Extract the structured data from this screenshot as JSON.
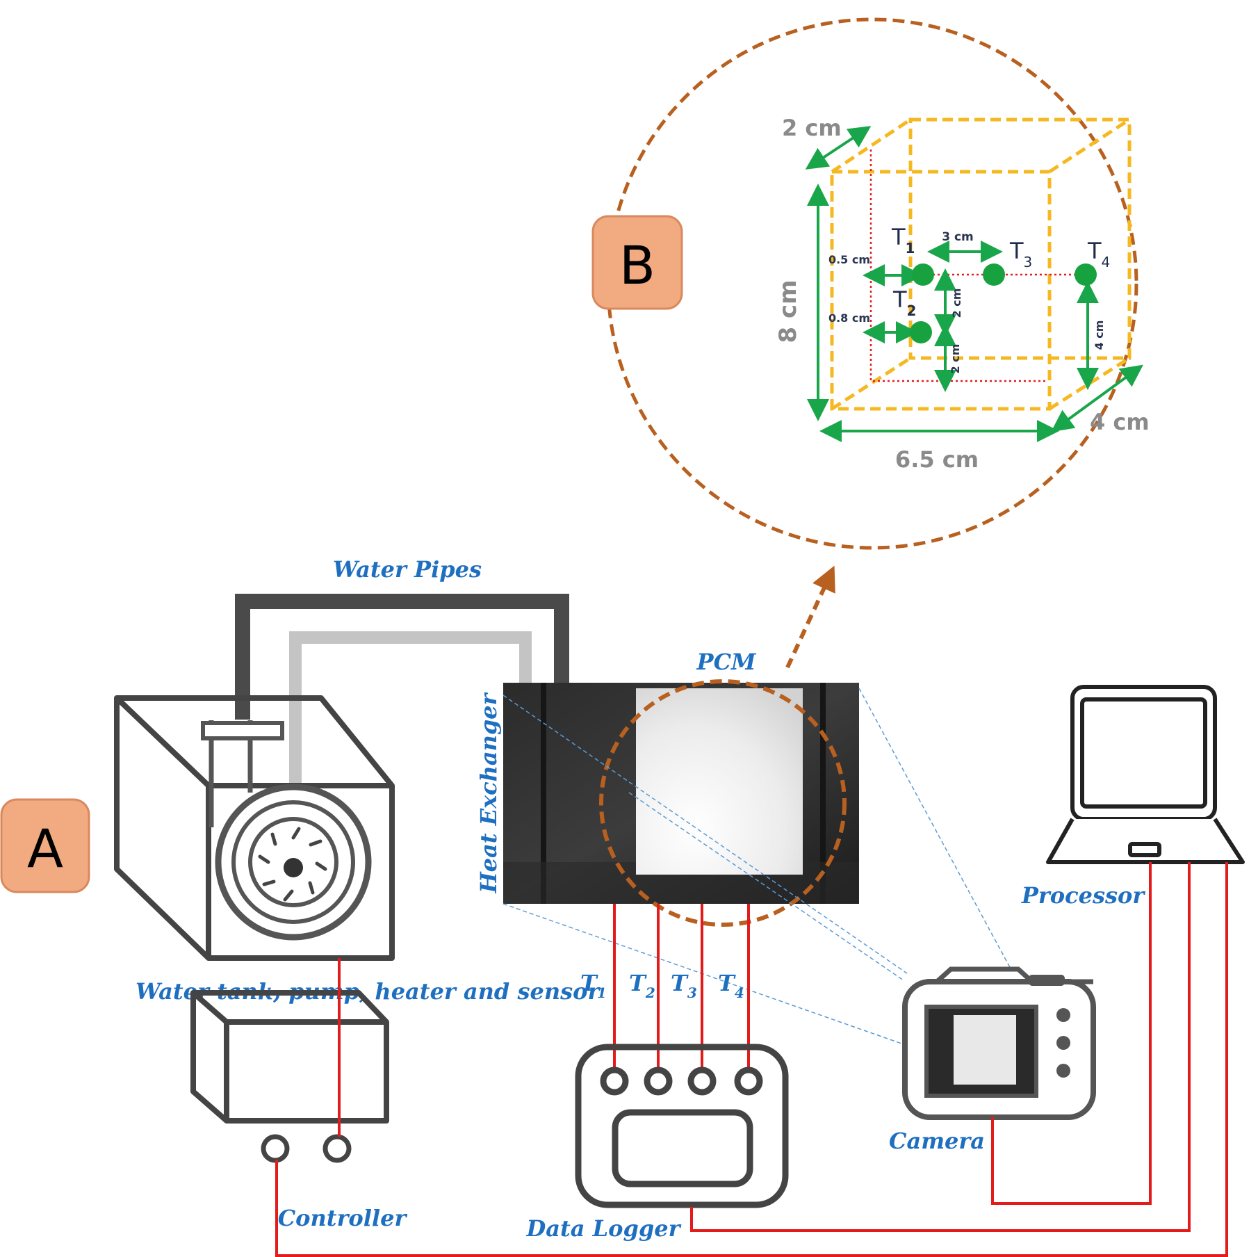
{
  "panels": {
    "a_label": "A",
    "b_label": "B"
  },
  "labels": {
    "water_pipes": "Water Pipes",
    "pcm": "PCM",
    "heat_exchanger": "Heat Exchanger",
    "processor": "Processor",
    "water_tank": "Water tank, pump, heater and sensor",
    "camera": "Camera",
    "controller": "Controller",
    "data_logger": "Data Logger"
  },
  "probes": [
    {
      "letter": "T",
      "sub": "1"
    },
    {
      "letter": "T",
      "sub": "2"
    },
    {
      "letter": "T",
      "sub": "3"
    },
    {
      "letter": "T",
      "sub": "4"
    }
  ],
  "dimensions": {
    "depth_top": "2 cm",
    "height": "8 cm",
    "width": "6.5 cm",
    "depth_bottom": "4 cm",
    "t1_t3": "3 cm",
    "t1_offset": "0.5 cm",
    "t2_offset": "0.8 cm",
    "t1_t2": "2 cm",
    "t2_bottom": "2 cm",
    "t4_bottom": "4 cm"
  },
  "colors": {
    "badge_fill": "#f2aa80",
    "badge_stroke": "#d8895e",
    "label_blue": "#1f6fc0",
    "wire_red": "#e31b1b",
    "dashed_brown": "#b8601f",
    "box_yellow": "#f5b820",
    "arrow_green": "#19a64a",
    "dot_green": "#17a23f",
    "dim_gray": "#8a8a8a"
  }
}
